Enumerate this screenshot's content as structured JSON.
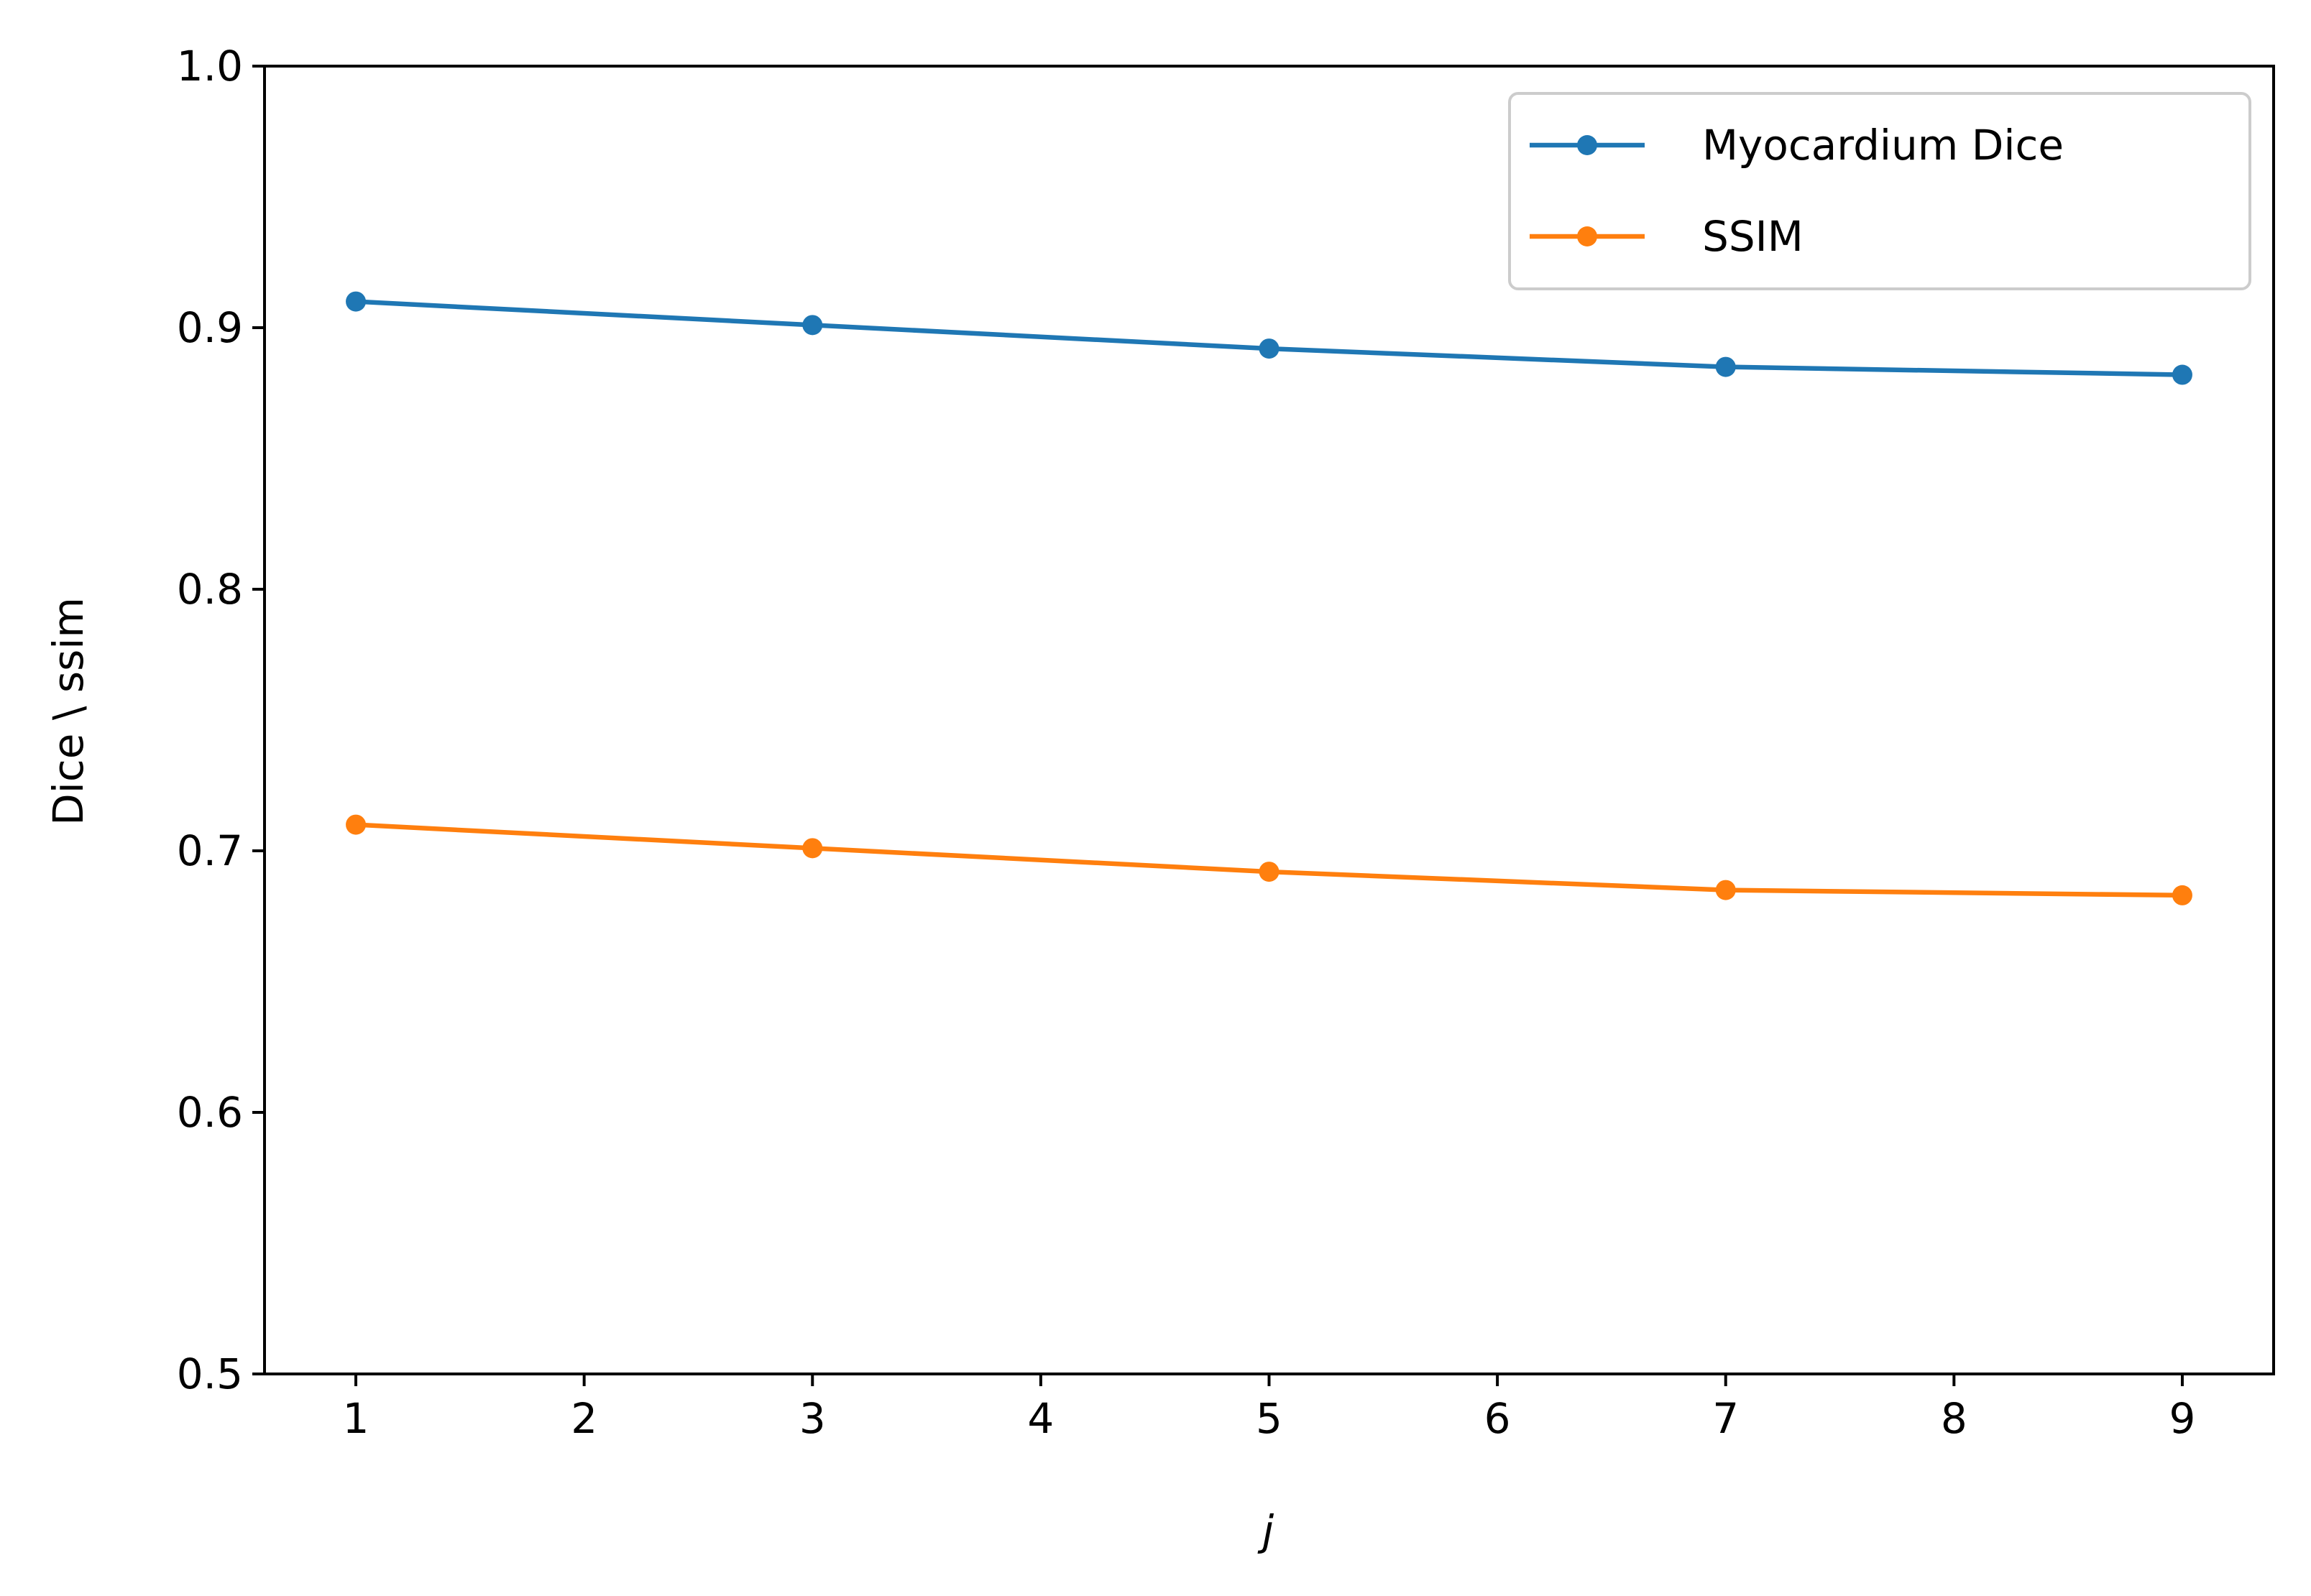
{
  "chart_data": {
    "type": "line",
    "x": [
      1,
      3,
      5,
      7,
      9
    ],
    "series": [
      {
        "name": "Myocardium Dice",
        "values": [
          0.91,
          0.901,
          0.892,
          0.885,
          0.882
        ],
        "color": "#1f77b4"
      },
      {
        "name": "SSIM",
        "values": [
          0.71,
          0.701,
          0.692,
          0.685,
          0.683
        ],
        "color": "#ff7f0e"
      }
    ],
    "xlabel": "j",
    "ylabel": "Dice \\ ssim",
    "xlim": [
      0.6,
      9.4
    ],
    "ylim": [
      0.5,
      1.0
    ],
    "xticks": [
      1,
      2,
      3,
      4,
      5,
      6,
      7,
      8,
      9
    ],
    "xtick_labels": [
      "1",
      "2",
      "3",
      "4",
      "5",
      "6",
      "7",
      "8",
      "9"
    ],
    "yticks": [
      0.5,
      0.6,
      0.7,
      0.8,
      0.9,
      1.0
    ],
    "ytick_labels": [
      "0.5",
      "0.6",
      "0.7",
      "0.8",
      "0.9",
      "1.0"
    ],
    "grid": false,
    "legend_position": "top-right"
  }
}
